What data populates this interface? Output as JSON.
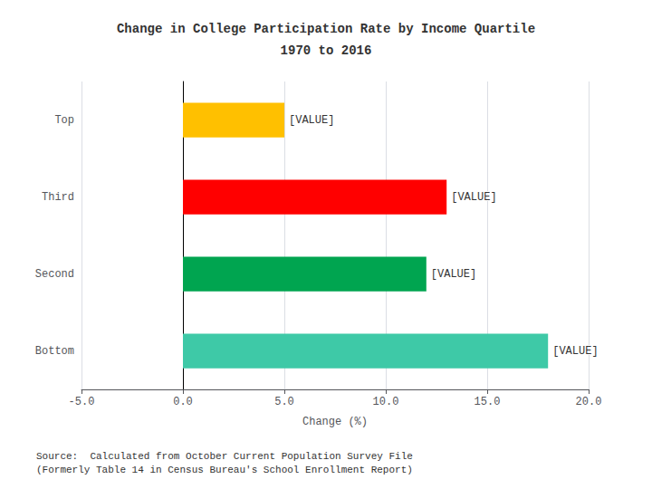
{
  "chart_data": {
    "type": "bar",
    "orientation": "horizontal",
    "title": "Change in College Participation Rate by Income Quartile",
    "subtitle": "1970 to 2016",
    "categories": [
      "Bottom",
      "Second",
      "Third",
      "Top"
    ],
    "values": [
      18.0,
      12.0,
      13.0,
      5.0
    ],
    "colors": [
      "#3EC9A7",
      "#00A550",
      "#FF0000",
      "#FFC000"
    ],
    "data_labels": true,
    "value_labels": [
      "[VALUE]",
      "[VALUE]",
      "[VALUE]",
      "[VALUE]"
    ],
    "xlabel": "Change (%)",
    "xlim": [
      -5.0,
      20.0
    ],
    "xticks": [
      {
        "value": -5.0,
        "label": "-5.0"
      },
      {
        "value": 0.0,
        "label": "0.0"
      },
      {
        "value": 5.0,
        "label": "5.0"
      },
      {
        "value": 10.0,
        "label": "10.0"
      },
      {
        "value": 15.0,
        "label": "15.0"
      },
      {
        "value": 20.0,
        "label": "20.0"
      }
    ],
    "grid": true,
    "annotations": [
      "Source:  Calculated from October Current Population Survey File",
      "(Formerly Table 14 in Census Bureau's School Enrollment Report)"
    ]
  }
}
